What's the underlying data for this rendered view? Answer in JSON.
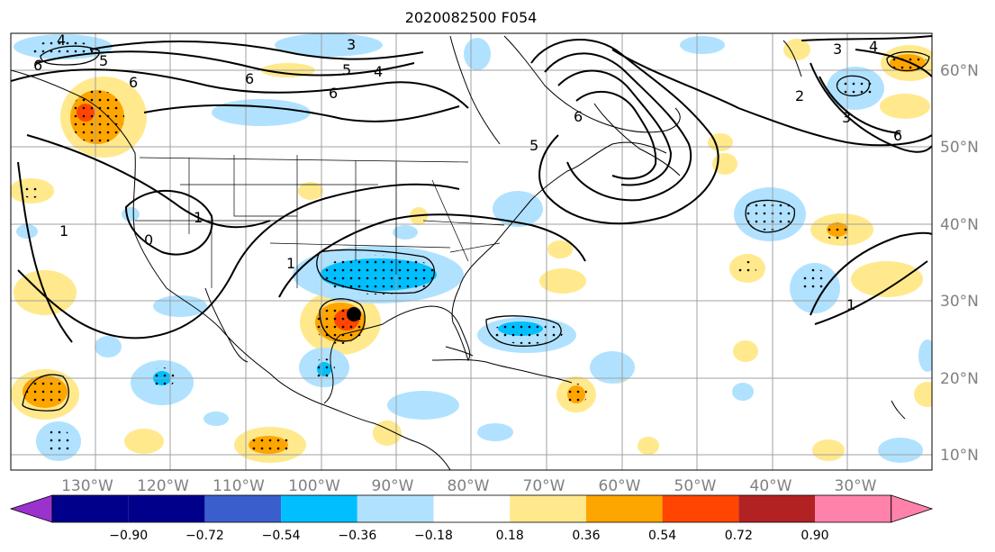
{
  "title": "2020082500 F054",
  "map": {
    "lon_labels": [
      "130°W",
      "120°W",
      "110°W",
      "100°W",
      "90°W",
      "80°W",
      "70°W",
      "60°W",
      "50°W",
      "40°W",
      "30°W"
    ],
    "lat_labels": [
      "60°N",
      "50°N",
      "40°N",
      "30°N",
      "20°N",
      "10°N"
    ],
    "grid": true
  },
  "colorbar": {
    "ticks": [
      "−0.90",
      "−0.72",
      "−0.54",
      "−0.36",
      "−0.18",
      "0.18",
      "0.36",
      "0.54",
      "0.72",
      "0.90"
    ],
    "colors": [
      "#9a32cd",
      "#00008b",
      "#3a5fcd",
      "#00bfff",
      "#b0e2ff",
      "#ffffff",
      "#ffe98c",
      "#ffa500",
      "#ff4500",
      "#b22222",
      "#ff82ab"
    ],
    "extend": "both"
  },
  "contour_labels": [
    "4",
    "5",
    "3",
    "6",
    "6",
    "5",
    "4",
    "6",
    "6",
    "5",
    "6",
    "1",
    "1",
    "0",
    "1",
    "3",
    "4",
    "2",
    "3",
    "6",
    "1"
  ]
}
